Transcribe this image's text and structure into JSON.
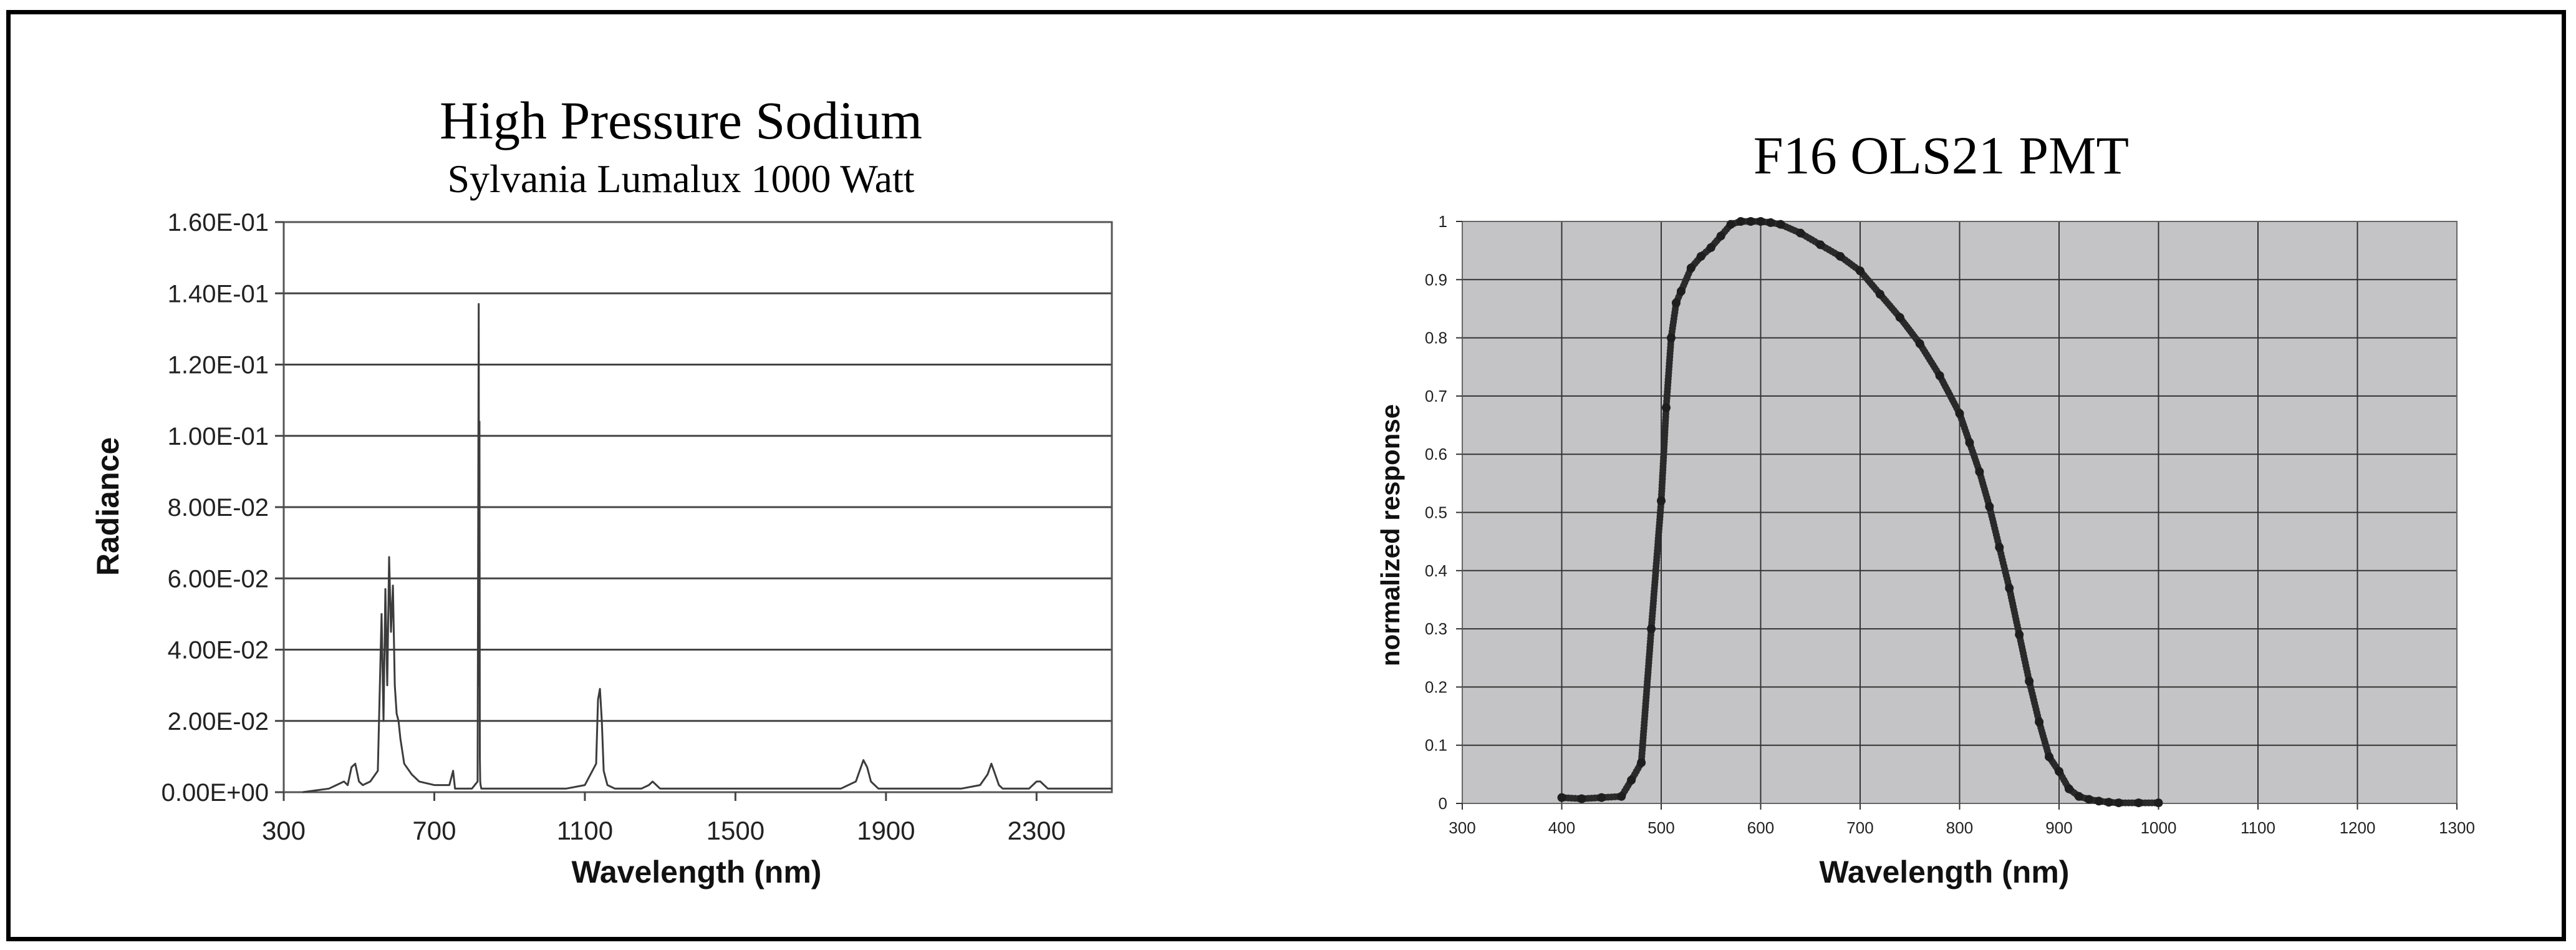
{
  "chart_data": [
    {
      "type": "line",
      "title": "High Pressure Sodium",
      "subtitle": "Sylvania Lumalux 1000 Watt",
      "xlabel": "Wavelength (nm)",
      "ylabel": "Radiance",
      "xlim": [
        300,
        2500
      ],
      "ylim": [
        0,
        0.16
      ],
      "x_ticks": [
        300,
        700,
        1100,
        1500,
        1900,
        2300
      ],
      "x_tick_labels": [
        "300",
        "700",
        "1100",
        "1500",
        "1900",
        "2300"
      ],
      "y_ticks": [
        0,
        0.02,
        0.04,
        0.06,
        0.08,
        0.1,
        0.12,
        0.14,
        0.16
      ],
      "y_tick_labels": [
        "0.00E+00",
        "2.00E-02",
        "4.00E-02",
        "6.00E-02",
        "8.00E-02",
        "1.00E-01",
        "1.20E-01",
        "1.40E-01",
        "1.60E-01"
      ],
      "grid": "horizontal",
      "series": [
        {
          "name": "Radiance",
          "x": [
            350,
            420,
            440,
            460,
            470,
            480,
            490,
            500,
            510,
            530,
            550,
            560,
            565,
            570,
            575,
            580,
            585,
            590,
            595,
            600,
            605,
            610,
            620,
            640,
            660,
            700,
            740,
            750,
            755,
            760,
            780,
            800,
            815,
            818,
            819,
            820,
            821,
            822,
            823,
            825,
            830,
            850,
            900,
            1000,
            1050,
            1100,
            1130,
            1135,
            1140,
            1145,
            1150,
            1160,
            1180,
            1250,
            1270,
            1280,
            1290,
            1300,
            1400,
            1500,
            1600,
            1700,
            1780,
            1820,
            1840,
            1850,
            1860,
            1880,
            2000,
            2100,
            2150,
            2170,
            2180,
            2190,
            2200,
            2210,
            2230,
            2280,
            2290,
            2300,
            2310,
            2330,
            2400,
            2500
          ],
          "y": [
            0,
            0.001,
            0.002,
            0.003,
            0.002,
            0.007,
            0.008,
            0.003,
            0.002,
            0.003,
            0.006,
            0.05,
            0.02,
            0.057,
            0.03,
            0.066,
            0.045,
            0.058,
            0.03,
            0.022,
            0.02,
            0.015,
            0.008,
            0.005,
            0.003,
            0.002,
            0.002,
            0.006,
            0.001,
            0.001,
            0.001,
            0.001,
            0.003,
            0.137,
            0.03,
            0.104,
            0.01,
            0.003,
            0.002,
            0.001,
            0.001,
            0.001,
            0.001,
            0.001,
            0.001,
            0.002,
            0.008,
            0.026,
            0.029,
            0.02,
            0.006,
            0.002,
            0.001,
            0.001,
            0.002,
            0.003,
            0.002,
            0.001,
            0.001,
            0.001,
            0.001,
            0.001,
            0.001,
            0.003,
            0.009,
            0.007,
            0.003,
            0.001,
            0.001,
            0.001,
            0.002,
            0.005,
            0.008,
            0.005,
            0.002,
            0.001,
            0.001,
            0.001,
            0.002,
            0.003,
            0.003,
            0.001,
            0.001,
            0.001
          ]
        }
      ]
    },
    {
      "type": "scatter",
      "title": "F16 OLS21 PMT",
      "xlabel": "Wavelength (nm)",
      "ylabel": "normalized response",
      "xlim": [
        300,
        1300
      ],
      "ylim": [
        0,
        1
      ],
      "x_ticks": [
        300,
        400,
        500,
        600,
        700,
        800,
        900,
        1000,
        1100,
        1200,
        1300
      ],
      "x_tick_labels": [
        "300",
        "400",
        "500",
        "600",
        "700",
        "800",
        "900",
        "1000",
        "1100",
        "1200",
        "1300"
      ],
      "y_ticks": [
        0,
        0.1,
        0.2,
        0.3,
        0.4,
        0.5,
        0.6,
        0.7,
        0.8,
        0.9,
        1
      ],
      "y_tick_labels": [
        "0",
        "0.1",
        "0.2",
        "0.3",
        "0.4",
        "0.5",
        "0.6",
        "0.7",
        "0.8",
        "0.9",
        "1"
      ],
      "grid": "both",
      "background": "#c4c4c6",
      "series": [
        {
          "name": "normalized response",
          "x": [
            400,
            420,
            440,
            460,
            470,
            480,
            490,
            500,
            505,
            510,
            515,
            520,
            530,
            540,
            550,
            560,
            570,
            580,
            590,
            600,
            610,
            620,
            640,
            660,
            680,
            700,
            720,
            740,
            760,
            780,
            800,
            810,
            820,
            830,
            840,
            850,
            860,
            870,
            880,
            890,
            900,
            910,
            920,
            930,
            940,
            950,
            960,
            980,
            1000
          ],
          "y": [
            0.01,
            0.008,
            0.01,
            0.012,
            0.04,
            0.07,
            0.3,
            0.52,
            0.68,
            0.8,
            0.86,
            0.88,
            0.92,
            0.94,
            0.955,
            0.975,
            0.995,
            1.0,
            1.0,
            1.0,
            0.998,
            0.995,
            0.98,
            0.96,
            0.94,
            0.915,
            0.875,
            0.835,
            0.79,
            0.735,
            0.67,
            0.62,
            0.57,
            0.51,
            0.44,
            0.37,
            0.29,
            0.21,
            0.14,
            0.08,
            0.055,
            0.025,
            0.012,
            0.007,
            0.004,
            0.002,
            0.001,
            0.001,
            0.001
          ]
        }
      ]
    }
  ]
}
